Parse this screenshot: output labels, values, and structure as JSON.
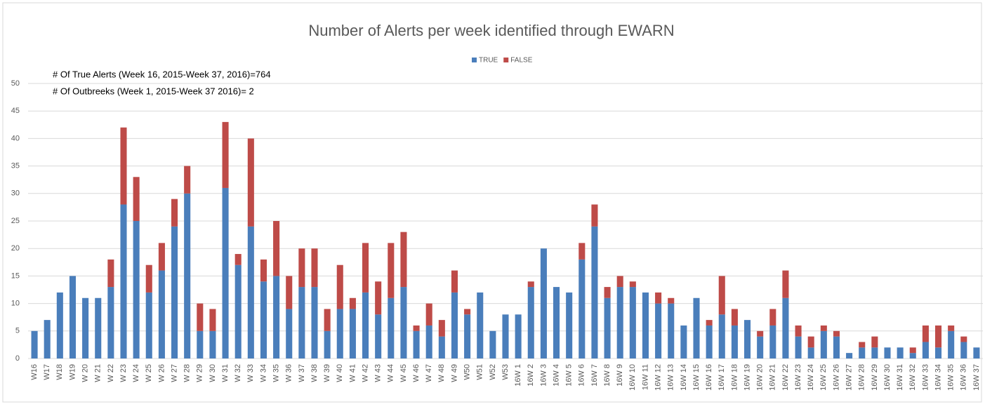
{
  "chart_data": {
    "type": "stacked_bar",
    "title": "Number of Alerts per week identified through EWARN",
    "annotations": [
      "# Of True Alerts (Week 16, 2015-Week 37, 2016)=764",
      "# Of Outbreeks (Week 1, 2015-Week 37 2016)= 2"
    ],
    "categories": [
      "W16",
      "W17",
      "W18",
      "W19",
      "W 20",
      "W 21",
      "W 22",
      "W 23",
      "W 24",
      "W 25",
      "W 26",
      "W 27",
      "W 28",
      "W 29",
      "W 30",
      "W 31",
      "W 32",
      "W 33",
      "W 34",
      "W 35",
      "W 36",
      "W 37",
      "W 38",
      "W 39",
      "W 40",
      "W 41",
      "W 42",
      "W 43",
      "W 44",
      "W 45",
      "W 46",
      "W 47",
      "W 48",
      "W 49",
      "W50",
      "W51",
      "W52",
      "W53",
      "16W 1",
      "16W 2",
      "16W 3",
      "16W 4",
      "16W 5",
      "16W 6",
      "16W 7",
      "16W 8",
      "16W 9",
      "16W 10",
      "16W 11",
      "16W 12",
      "16W 13",
      "16W 14",
      "16W 15",
      "16W 16",
      "16W 17",
      "16W 18",
      "16W 19",
      "16W 20",
      "16W 21",
      "16W 22",
      "16W 23",
      "16W 24",
      "16W 25",
      "16W 26",
      "16W 27",
      "16W 28",
      "16W 29",
      "16W 30",
      "16W 31",
      "16W 32",
      "16W 33",
      "16W 34",
      "16W 35",
      "16W 36",
      "16W 37"
    ],
    "series": [
      {
        "name": "TRUE",
        "color": "#4a7ebb",
        "values": [
          5,
          7,
          12,
          15,
          11,
          11,
          13,
          28,
          25,
          12,
          16,
          24,
          30,
          5,
          5,
          31,
          17,
          24,
          14,
          15,
          9,
          13,
          13,
          5,
          9,
          9,
          12,
          8,
          11,
          13,
          5,
          6,
          4,
          12,
          8,
          12,
          5,
          8,
          8,
          13,
          20,
          13,
          12,
          18,
          24,
          11,
          13,
          13,
          12,
          10,
          10,
          6,
          11,
          6,
          8,
          6,
          7,
          4,
          6,
          11,
          4,
          2,
          5,
          4,
          1,
          2,
          2,
          2,
          2,
          1,
          3,
          2,
          5,
          3,
          2
        ]
      },
      {
        "name": "FALSE",
        "color": "#be4b48",
        "values": [
          0,
          0,
          0,
          0,
          0,
          0,
          5,
          14,
          8,
          5,
          5,
          5,
          5,
          5,
          4,
          12,
          2,
          16,
          4,
          10,
          6,
          7,
          7,
          4,
          8,
          2,
          9,
          6,
          10,
          10,
          1,
          4,
          3,
          4,
          1,
          0,
          0,
          0,
          0,
          1,
          0,
          0,
          0,
          3,
          4,
          2,
          2,
          1,
          0,
          2,
          1,
          0,
          0,
          1,
          7,
          3,
          0,
          1,
          3,
          5,
          2,
          2,
          1,
          1,
          0,
          1,
          2,
          0,
          0,
          1,
          3,
          4,
          1,
          1,
          0
        ]
      }
    ],
    "ylim": [
      0,
      50
    ],
    "yticks": [
      0,
      5,
      10,
      15,
      20,
      25,
      30,
      35,
      40,
      45,
      50
    ],
    "grid": true,
    "legend": "top"
  }
}
